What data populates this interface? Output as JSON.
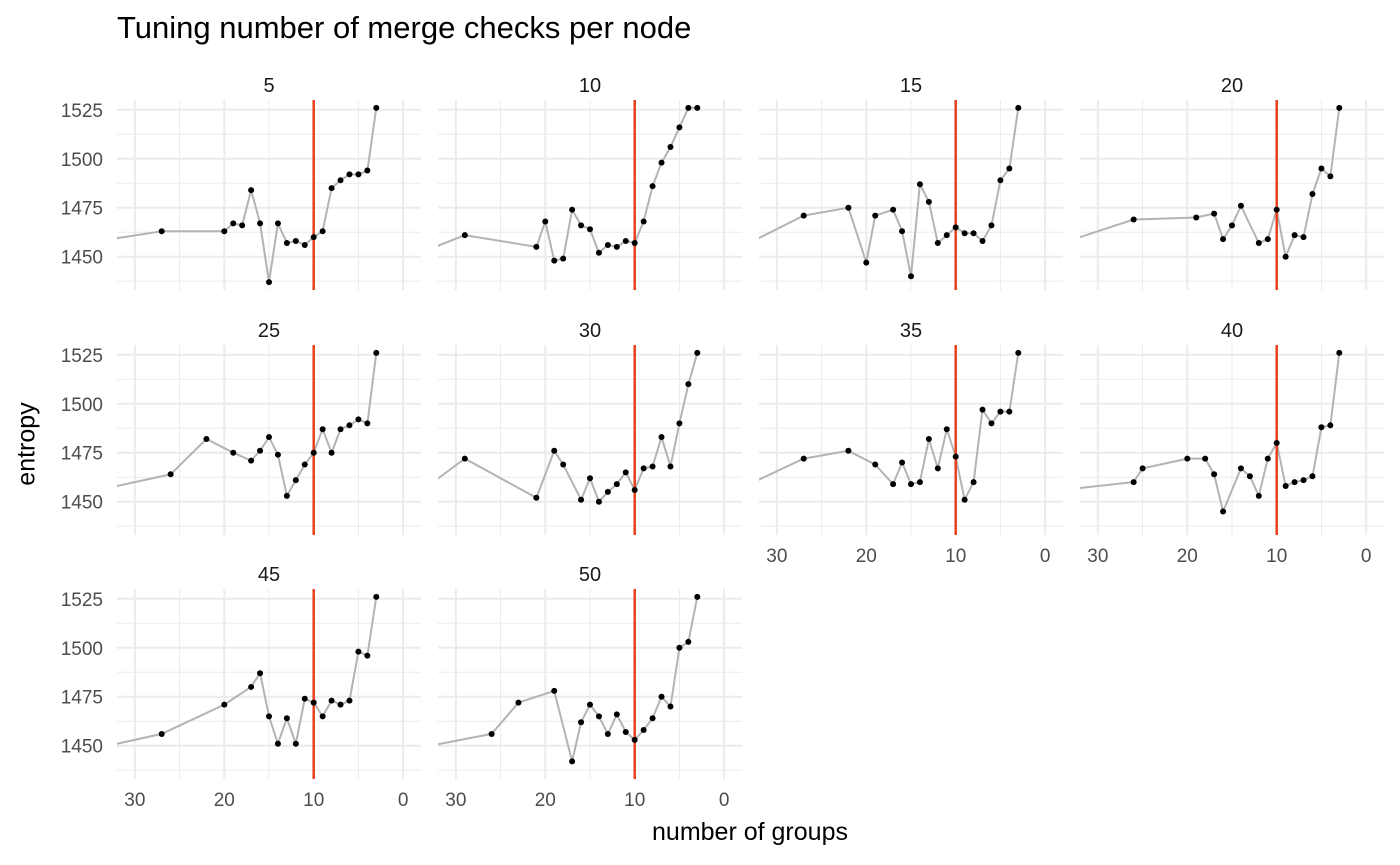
{
  "title": "Tuning number of merge checks per node",
  "xlabel": "number of groups",
  "ylabel": "entropy",
  "colors": {
    "line": "#b3b3b3",
    "point": "#000000",
    "threshold": "#e8401c",
    "grid": "#ebebeb",
    "text": "#4d4d4d"
  },
  "chart_data": {
    "type": "line",
    "facet_by": "merge checks per node",
    "x_ticks": [
      30,
      20,
      10,
      0
    ],
    "y_ticks": [
      1450,
      1475,
      1500,
      1525
    ],
    "xlim": [
      32,
      -2
    ],
    "ylim": [
      1433,
      1530
    ],
    "x_reversed": true,
    "threshold_x": 10,
    "grid": true,
    "facets": [
      {
        "label": "5",
        "x": [
          34,
          27,
          20,
          19,
          18,
          17,
          16,
          15,
          14,
          13,
          12,
          11,
          10,
          9,
          8,
          7,
          6,
          5,
          4,
          3
        ],
        "y": [
          1458,
          1463,
          1463,
          1467,
          1466,
          1484,
          1467,
          1437,
          1467,
          1457,
          1458,
          1456,
          1460,
          1463,
          1485,
          1489,
          1492,
          1492,
          1494,
          1526
        ]
      },
      {
        "label": "10",
        "x": [
          34,
          29,
          21,
          20,
          19,
          18,
          17,
          16,
          15,
          14,
          13,
          12,
          11,
          10,
          9,
          8,
          7,
          6,
          5,
          4,
          3
        ],
        "y": [
          1452,
          1461,
          1455,
          1468,
          1448,
          1449,
          1474,
          1466,
          1464,
          1452,
          1456,
          1455,
          1458,
          1457,
          1468,
          1486,
          1498,
          1506,
          1516,
          1526,
          1526
        ]
      },
      {
        "label": "15",
        "x": [
          34,
          27,
          22,
          20,
          19,
          17,
          16,
          15,
          14,
          13,
          12,
          11,
          10,
          9,
          8,
          7,
          6,
          5,
          4,
          3
        ],
        "y": [
          1455,
          1471,
          1475,
          1447,
          1471,
          1474,
          1463,
          1440,
          1487,
          1478,
          1457,
          1461,
          1465,
          1462,
          1462,
          1458,
          1466,
          1489,
          1495,
          1526
        ]
      },
      {
        "label": "20",
        "x": [
          34,
          26,
          19,
          17,
          16,
          15,
          14,
          12,
          11,
          10,
          9,
          8,
          7,
          6,
          5,
          4,
          3
        ],
        "y": [
          1457,
          1469,
          1470,
          1472,
          1459,
          1466,
          1476,
          1457,
          1459,
          1474,
          1450,
          1461,
          1460,
          1482,
          1495,
          1491,
          1526
        ]
      },
      {
        "label": "25",
        "x": [
          34,
          26,
          22,
          19,
          17,
          16,
          15,
          14,
          13,
          12,
          11,
          10,
          9,
          8,
          7,
          6,
          5,
          4,
          3
        ],
        "y": [
          1456,
          1464,
          1482,
          1475,
          1471,
          1476,
          1483,
          1474,
          1453,
          1461,
          1469,
          1475,
          1487,
          1475,
          1487,
          1489,
          1492,
          1490,
          1526
        ]
      },
      {
        "label": "30",
        "x": [
          34,
          29,
          21,
          19,
          18,
          16,
          15,
          14,
          13,
          12,
          11,
          10,
          9,
          8,
          7,
          6,
          5,
          4,
          3
        ],
        "y": [
          1455,
          1472,
          1452,
          1476,
          1469,
          1451,
          1462,
          1450,
          1455,
          1459,
          1465,
          1456,
          1467,
          1468,
          1483,
          1468,
          1490,
          1510,
          1526
        ]
      },
      {
        "label": "35",
        "x": [
          34,
          27,
          22,
          19,
          17,
          16,
          15,
          14,
          13,
          12,
          11,
          10,
          9,
          8,
          7,
          6,
          5,
          4,
          3
        ],
        "y": [
          1457,
          1472,
          1476,
          1469,
          1459,
          1470,
          1459,
          1460,
          1482,
          1467,
          1487,
          1473,
          1451,
          1460,
          1497,
          1490,
          1496,
          1496,
          1526
        ]
      },
      {
        "label": "40",
        "x": [
          34,
          26,
          25,
          20,
          18,
          17,
          16,
          14,
          13,
          12,
          11,
          10,
          9,
          8,
          7,
          6,
          5,
          4,
          3
        ],
        "y": [
          1456,
          1460,
          1467,
          1472,
          1472,
          1464,
          1445,
          1467,
          1463,
          1453,
          1472,
          1480,
          1458,
          1460,
          1461,
          1463,
          1488,
          1489,
          1526
        ]
      },
      {
        "label": "45",
        "x": [
          34,
          27,
          20,
          17,
          16,
          15,
          14,
          13,
          12,
          11,
          10,
          9,
          8,
          7,
          6,
          5,
          4,
          3
        ],
        "y": [
          1449,
          1456,
          1471,
          1480,
          1487,
          1465,
          1451,
          1464,
          1451,
          1474,
          1472,
          1465,
          1473,
          1471,
          1473,
          1498,
          1496,
          1526
        ]
      },
      {
        "label": "50",
        "x": [
          34,
          26,
          23,
          19,
          17,
          16,
          15,
          14,
          13,
          12,
          11,
          10,
          9,
          8,
          7,
          6,
          5,
          4,
          3
        ],
        "y": [
          1449,
          1456,
          1472,
          1478,
          1442,
          1462,
          1471,
          1465,
          1456,
          1466,
          1457,
          1453,
          1458,
          1464,
          1475,
          1470,
          1500,
          1503,
          1526
        ]
      }
    ]
  }
}
